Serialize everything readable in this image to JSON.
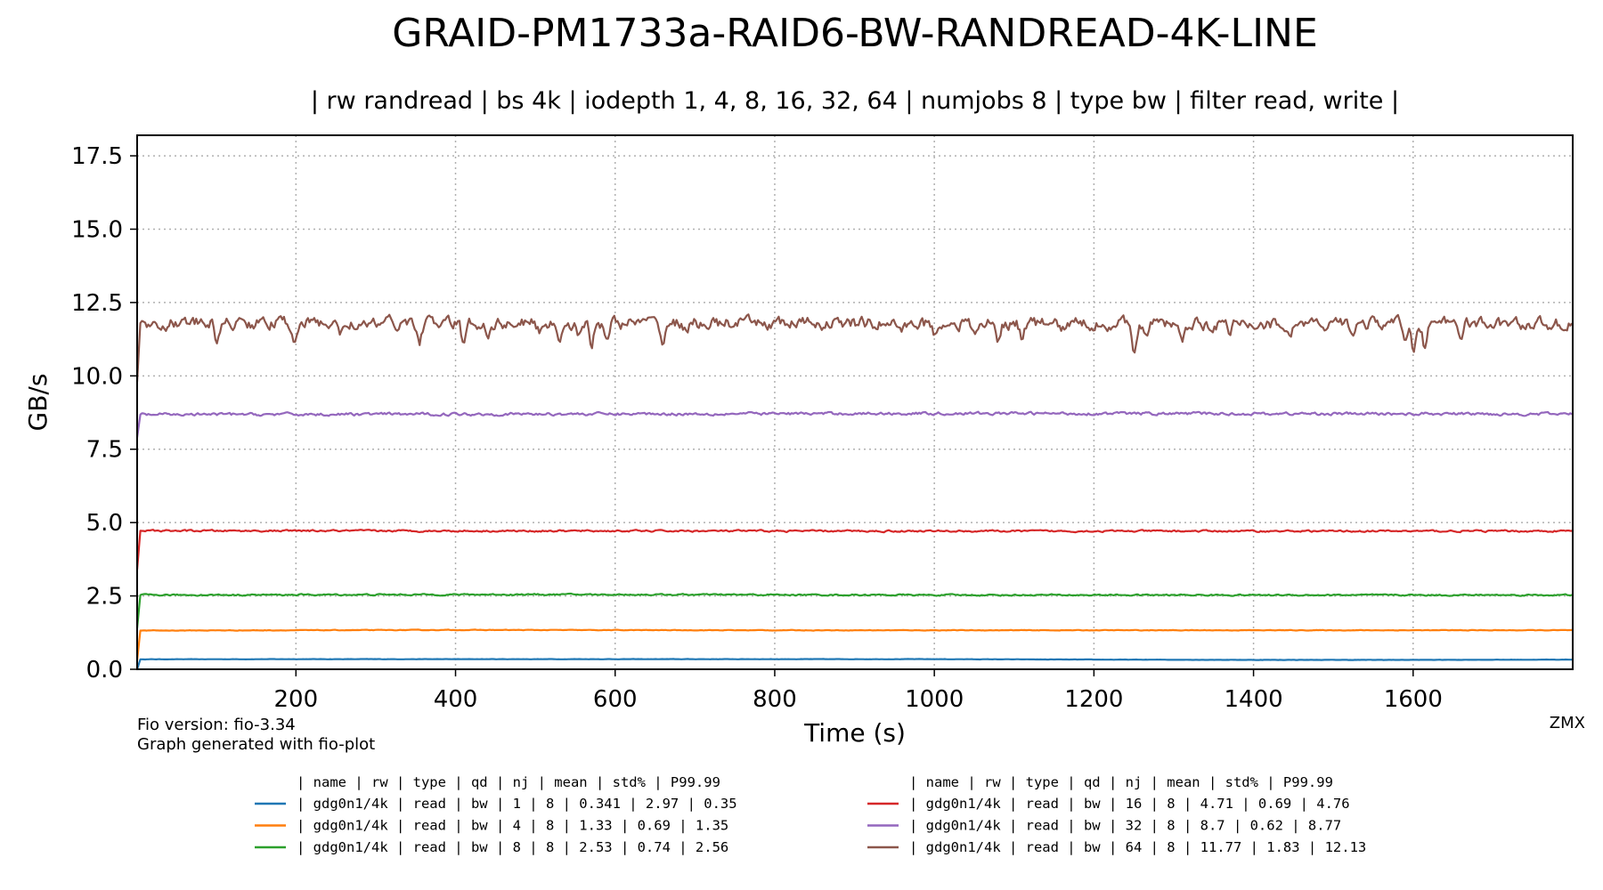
{
  "chart_data": {
    "type": "line",
    "title": "GRAID-PM1733a-RAID6-BW-RANDREAD-4K-LINE",
    "subtitle": "| rw randread | bs 4k | iodepth 1, 4, 8, 16, 32, 64 | numjobs 8 | type bw | filter read, write |",
    "xlabel": "Time (s)",
    "ylabel": "GB/s",
    "xlim": [
      1,
      1800
    ],
    "ylim": [
      0,
      18.2
    ],
    "xticks": [
      200,
      400,
      600,
      800,
      1000,
      1200,
      1400,
      1600
    ],
    "xtick_labels": [
      "200",
      "400",
      "600",
      "800",
      "1000",
      "1200",
      "1400",
      "1600"
    ],
    "yticks": [
      0,
      2.5,
      5,
      7.5,
      10,
      12.5,
      15,
      17.5
    ],
    "ytick_labels": [
      "0.0",
      "2.5",
      "5.0",
      "7.5",
      "10.0",
      "12.5",
      "15.0",
      "17.5"
    ],
    "grid": true,
    "legend_placement": "bottom",
    "series": [
      {
        "qd": 1,
        "color": "#1f77b4",
        "mean": 0.341,
        "fluct": 0.004,
        "points": [
          [
            1,
            0.0
          ],
          [
            5,
            0.34
          ],
          [
            200,
            0.345
          ],
          [
            600,
            0.345
          ],
          [
            1000,
            0.345
          ],
          [
            1200,
            0.33
          ],
          [
            1400,
            0.32
          ],
          [
            1600,
            0.32
          ],
          [
            1800,
            0.33
          ]
        ]
      },
      {
        "qd": 4,
        "color": "#ff7f0e",
        "mean": 1.33,
        "fluct": 0.008,
        "points": [
          [
            1,
            0.3
          ],
          [
            5,
            1.32
          ],
          [
            400,
            1.34
          ],
          [
            800,
            1.33
          ],
          [
            1200,
            1.33
          ],
          [
            1800,
            1.33
          ]
        ]
      },
      {
        "qd": 8,
        "color": "#2ca02c",
        "mean": 2.53,
        "fluct": 0.02,
        "points": [
          [
            1,
            1.4
          ],
          [
            5,
            2.53
          ],
          [
            500,
            2.55
          ],
          [
            1000,
            2.53
          ],
          [
            1800,
            2.53
          ]
        ]
      },
      {
        "qd": 16,
        "color": "#d62728",
        "mean": 4.71,
        "fluct": 0.025,
        "points": [
          [
            1,
            3.4
          ],
          [
            5,
            4.72
          ],
          [
            1000,
            4.71
          ],
          [
            1800,
            4.71
          ]
        ]
      },
      {
        "qd": 32,
        "color": "#9467bd",
        "mean": 8.7,
        "fluct": 0.04,
        "points": [
          [
            1,
            7.9
          ],
          [
            5,
            8.68
          ],
          [
            1000,
            8.72
          ],
          [
            1800,
            8.7
          ]
        ]
      },
      {
        "qd": 64,
        "color": "#8c564b",
        "mean": 11.77,
        "fluct": 0.17,
        "points": [
          [
            1,
            9.8
          ],
          [
            5,
            11.8
          ],
          [
            1800,
            11.77
          ]
        ]
      }
    ],
    "dips": [
      [
        100,
        11.1
      ],
      [
        198,
        11.2
      ],
      [
        255,
        11.3
      ],
      [
        290,
        11.5
      ],
      [
        355,
        11.1
      ],
      [
        410,
        11.0
      ],
      [
        440,
        11.4
      ],
      [
        505,
        11.5
      ],
      [
        530,
        11.2
      ],
      [
        555,
        11.3
      ],
      [
        570,
        10.9
      ],
      [
        590,
        11.3
      ],
      [
        660,
        11.1
      ],
      [
        690,
        11.4
      ],
      [
        960,
        11.5
      ],
      [
        1000,
        11.4
      ],
      [
        1050,
        11.3
      ],
      [
        1080,
        11.1
      ],
      [
        1110,
        11.2
      ],
      [
        1160,
        11.5
      ],
      [
        1250,
        11.0
      ],
      [
        1265,
        11.2
      ],
      [
        1310,
        11.1
      ],
      [
        1370,
        11.2
      ],
      [
        1445,
        11.3
      ],
      [
        1490,
        11.3
      ],
      [
        1525,
        11.5
      ],
      [
        1590,
        11.2
      ],
      [
        1600,
        10.9
      ],
      [
        1615,
        11.0
      ],
      [
        1660,
        11.5
      ]
    ]
  },
  "legend": {
    "columns": [
      {
        "header": "| name        | rw    | type | qd | nj | mean   | std% | P99.99",
        "rows": [
          {
            "color": "#1f77b4",
            "text": "|  gdg0n1/4k  |  read |   bw |  1 |  8 |  0.341 | 2.97 |   0.35"
          },
          {
            "color": "#ff7f0e",
            "text": "|  gdg0n1/4k  |  read |   bw |  4 |  8 |   1.33 | 0.69 |   1.35"
          },
          {
            "color": "#2ca02c",
            "text": "|  gdg0n1/4k  |  read |   bw |  8 |  8 |   2.53 | 0.74 |   2.56"
          }
        ]
      },
      {
        "header": "| name        | rw    | type | qd | nj | mean   | std% | P99.99",
        "rows": [
          {
            "color": "#d62728",
            "text": "|  gdg0n1/4k  |  read |   bw | 16 |  8 |   4.71 | 0.69 |   4.76"
          },
          {
            "color": "#9467bd",
            "text": "|  gdg0n1/4k  |  read |   bw | 32 |  8 |    8.7 | 0.62 |   8.77"
          },
          {
            "color": "#8c564b",
            "text": "|  gdg0n1/4k  |  read |   bw | 64 |  8 |  11.77 | 1.83 |  12.13"
          }
        ]
      }
    ]
  },
  "footer": {
    "fio_version": "Fio version: fio-3.34",
    "generator": "Graph generated with fio-plot",
    "watermark": "ZMX"
  }
}
